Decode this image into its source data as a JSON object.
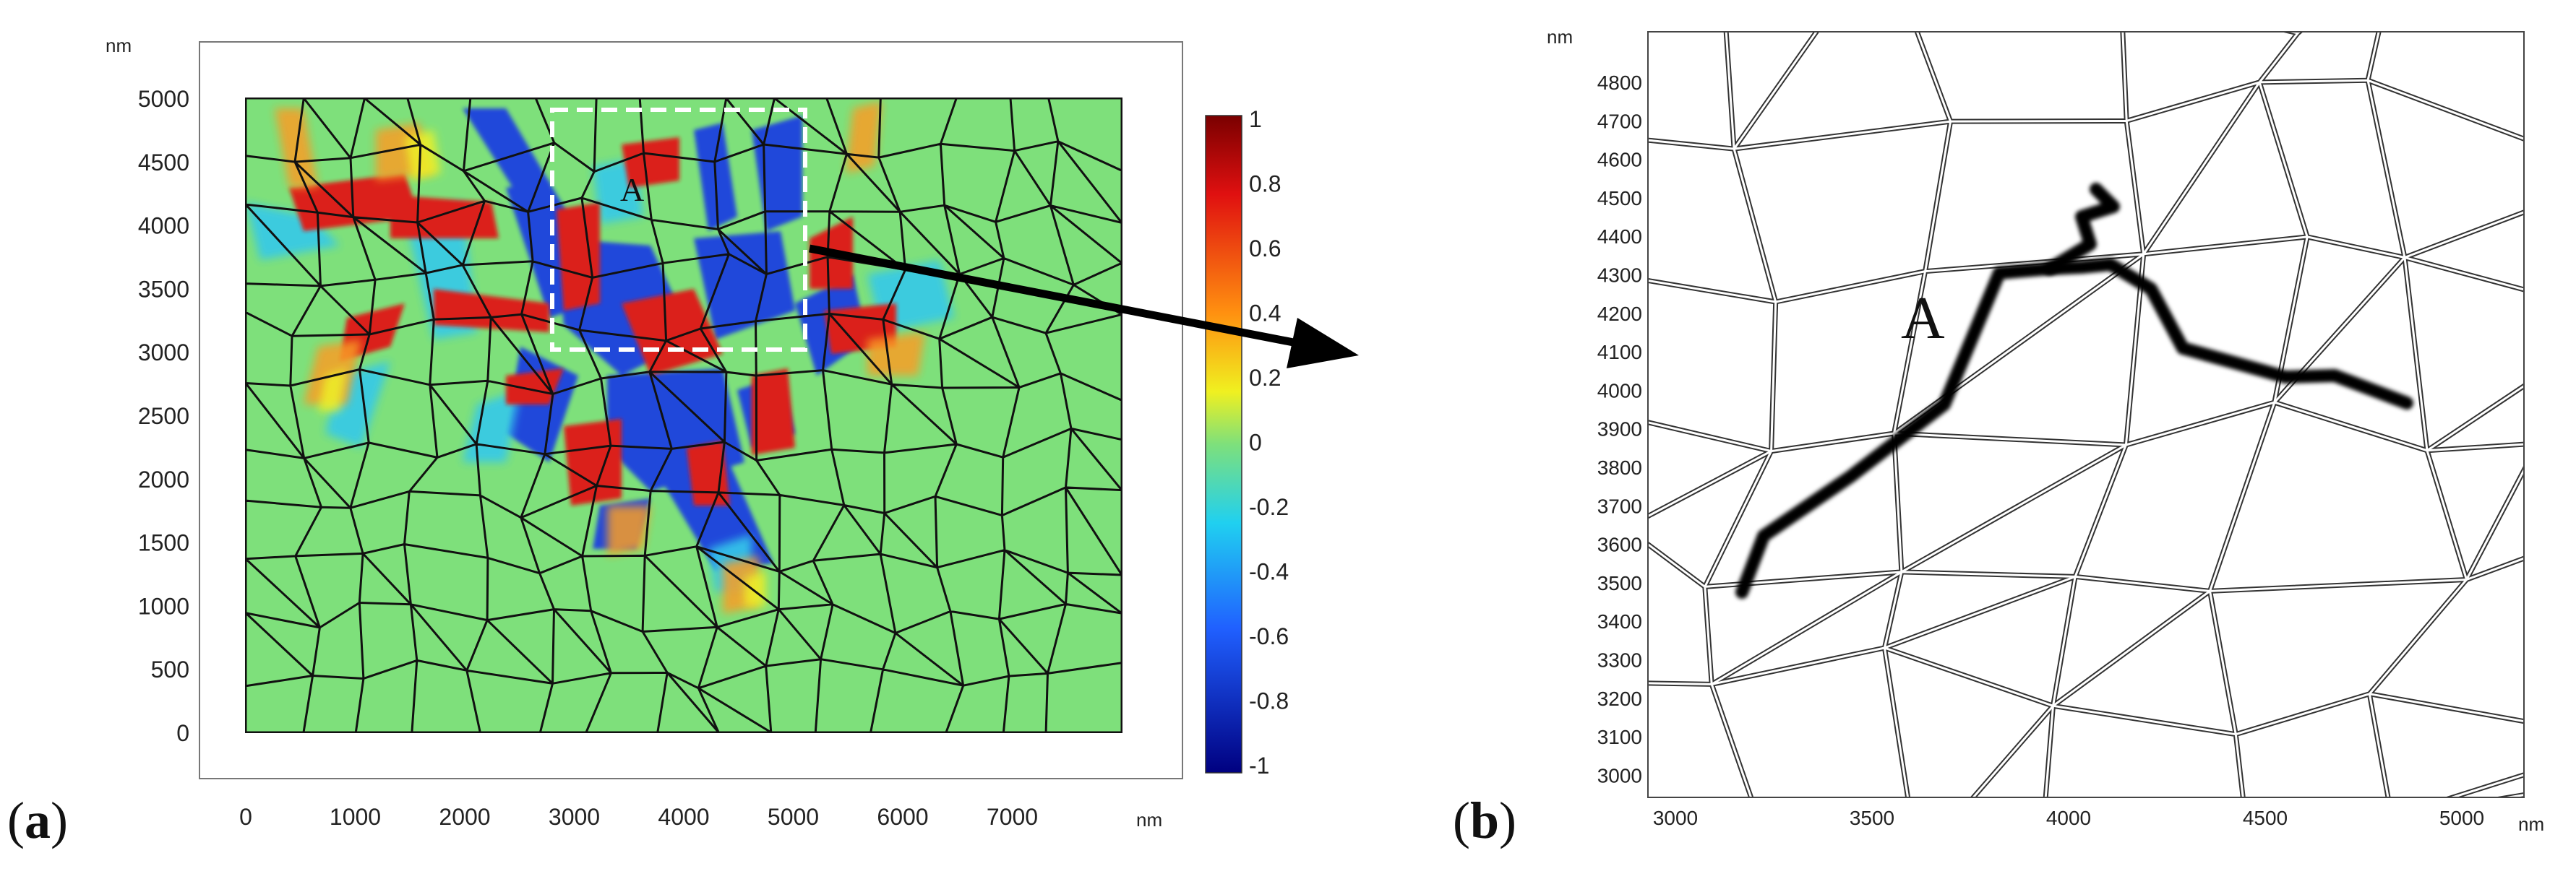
{
  "panel_a": {
    "label_open": "(",
    "label_letter": "a",
    "label_close": ")",
    "y_unit": "nm",
    "x_unit": "nm",
    "y_ticks": [
      "5000",
      "4500",
      "4000",
      "3500",
      "3000",
      "2500",
      "2000",
      "1500",
      "1000",
      "500",
      "0"
    ],
    "x_ticks": [
      "0",
      "1000",
      "2000",
      "3000",
      "4000",
      "5000",
      "6000",
      "7000"
    ],
    "colorbar_ticks": [
      "1",
      "0.8",
      "0.6",
      "0.4",
      "0.2",
      "0",
      "-0.2",
      "-0.4",
      "-0.6",
      "-0.8",
      "-1"
    ],
    "crack_label": "A",
    "colors": {
      "background": "#7ee07b",
      "grain_line": "#111111"
    }
  },
  "panel_b": {
    "label_open": "(",
    "label_letter": "b",
    "label_close": ")",
    "y_unit": "nm",
    "x_unit": "nm",
    "y_ticks": [
      "4800",
      "4700",
      "4600",
      "4500",
      "4400",
      "4300",
      "4200",
      "4100",
      "4000",
      "3900",
      "3800",
      "3700",
      "3600",
      "3500",
      "3400",
      "3300",
      "3200",
      "3100",
      "3000"
    ],
    "x_ticks": [
      "3000",
      "3500",
      "4000",
      "4500",
      "5000"
    ],
    "crack_label": "A"
  }
}
